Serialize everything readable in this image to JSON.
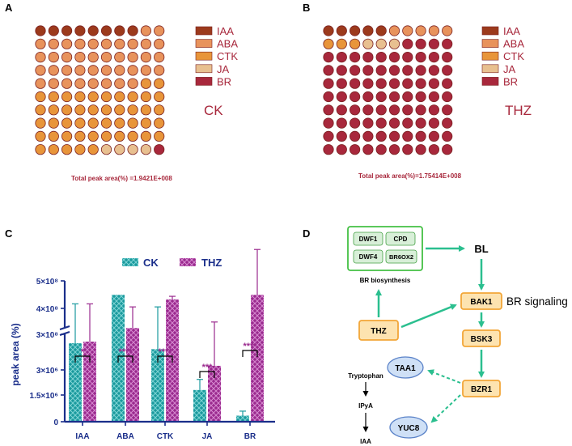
{
  "panels": {
    "a": {
      "label": "A",
      "group_label": "CK",
      "total_text": "Total peak area(%) =1.9421E+008",
      "legend": [
        "IAA",
        "ABA",
        "CTK",
        "JA",
        "BR"
      ]
    },
    "b": {
      "label": "B",
      "group_label": "THZ",
      "total_text": "Total peak area(%)=1.75414E+008",
      "legend": [
        "IAA",
        "ABA",
        "CTK",
        "JA",
        "BR"
      ]
    },
    "c": {
      "label": "C"
    },
    "d": {
      "label": "D",
      "nodes": {
        "dwf1": "DWF1",
        "cpd": "CPD",
        "dwf4": "DWF4",
        "br6ox2": "BR6OX2",
        "br_biosynthesis": "BR biosynthesis",
        "bl": "BL",
        "bak1": "BAK1",
        "br_signaling": "BR signaling",
        "thz": "THZ",
        "bsk3": "BSK3",
        "bzr1": "BZR1",
        "taa1": "TAA1",
        "yuc8": "YUC8",
        "tryptophan": "Tryptophan",
        "ipya": "IPyA",
        "iaa": "IAA"
      }
    }
  },
  "colors": {
    "IAA": "#9c3a1c",
    "ABA": "#e8935c",
    "CTK": "#e8953a",
    "JA": "#e8c090",
    "BR": "#a8283c",
    "ck": "#1a9a9e",
    "thz": "#9a2a8e",
    "axis": "#1a2e8a",
    "accent": "#2bbf8f"
  },
  "chart_data": {
    "type": "bar",
    "categories": [
      "IAA",
      "ABA",
      "CTK",
      "JA",
      "BR"
    ],
    "series": [
      {
        "name": "CK",
        "values": [
          2.6,
          4.2,
          2.4,
          1.05,
          0.2
        ],
        "errors": [
          1.3,
          0.0,
          1.4,
          0.35,
          0.15
        ]
      },
      {
        "name": "THZ",
        "values": [
          2.65,
          3.1,
          4.05,
          1.85,
          4.2
        ],
        "errors": [
          1.25,
          0.7,
          0.1,
          1.45,
          1.5
        ]
      }
    ],
    "ylabel": "peak area (%)",
    "y_ticks": [
      "0",
      "1.5×10⁶",
      "3×10⁶",
      "3×10⁸",
      "4×10⁸",
      "5×10⁸"
    ],
    "significance": [
      "*",
      "****",
      "****",
      "***",
      "****"
    ],
    "grid": false,
    "legend": "top"
  },
  "waffle_data": {
    "ck": {
      "counts": {
        "IAA": 8,
        "ABA": 40,
        "CTK": 47,
        "JA": 4,
        "BR": 1
      }
    },
    "thz": {
      "counts": {
        "IAA": 5,
        "ABA": 5,
        "CTK": 3,
        "JA": 3,
        "BR": 84
      }
    }
  }
}
